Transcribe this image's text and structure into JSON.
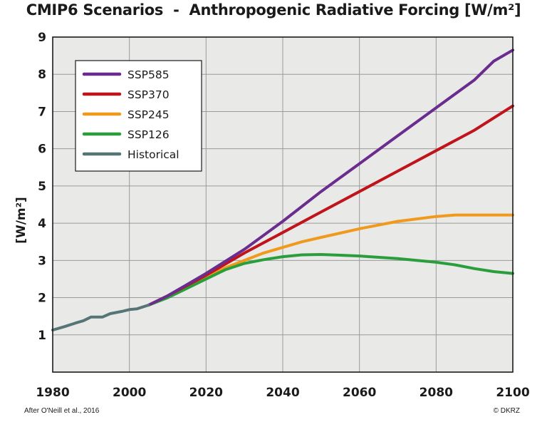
{
  "chart_data": {
    "type": "line",
    "title": "CMIP6 Scenarios  -  Anthropogenic Radiative Forcing [W/m²]",
    "ylabel": "[W/m²]",
    "xlabel": "",
    "xlim": [
      1980,
      2100
    ],
    "ylim": [
      0,
      9
    ],
    "xticks": [
      "1980",
      "2000",
      "2020",
      "2040",
      "2060",
      "2080",
      "2100"
    ],
    "yticks": [
      "1",
      "2",
      "3",
      "4",
      "5",
      "6",
      "7",
      "8",
      "9"
    ],
    "grid": true,
    "legend_position": "top-left",
    "series": [
      {
        "name": "SSP585",
        "color": "#6a2c8e",
        "x": [
          2005,
          2010,
          2020,
          2030,
          2040,
          2050,
          2060,
          2070,
          2080,
          2090,
          2095,
          2100
        ],
        "y": [
          1.8,
          2.05,
          2.65,
          3.3,
          4.05,
          4.85,
          5.6,
          6.35,
          7.1,
          7.85,
          8.35,
          8.65
        ]
      },
      {
        "name": "SSP370",
        "color": "#c0141c",
        "x": [
          2005,
          2010,
          2020,
          2030,
          2040,
          2050,
          2060,
          2070,
          2080,
          2090,
          2100
        ],
        "y": [
          1.8,
          2.05,
          2.6,
          3.2,
          3.75,
          4.3,
          4.85,
          5.4,
          5.95,
          6.5,
          7.15
        ]
      },
      {
        "name": "SSP245",
        "color": "#ef9a1c",
        "x": [
          2005,
          2010,
          2020,
          2025,
          2030,
          2035,
          2040,
          2045,
          2050,
          2060,
          2070,
          2080,
          2085,
          2100
        ],
        "y": [
          1.8,
          2.05,
          2.55,
          2.8,
          3.0,
          3.2,
          3.35,
          3.5,
          3.62,
          3.85,
          4.05,
          4.18,
          4.22,
          4.22
        ]
      },
      {
        "name": "SSP126",
        "color": "#2a9e3c",
        "x": [
          2005,
          2010,
          2020,
          2025,
          2030,
          2035,
          2040,
          2045,
          2050,
          2055,
          2060,
          2070,
          2080,
          2085,
          2090,
          2095,
          2100
        ],
        "y": [
          1.8,
          2.0,
          2.5,
          2.75,
          2.92,
          3.02,
          3.1,
          3.15,
          3.16,
          3.14,
          3.12,
          3.05,
          2.95,
          2.88,
          2.78,
          2.7,
          2.65
        ]
      },
      {
        "name": "Historical",
        "color": "#567575",
        "x": [
          1980,
          1983,
          1986,
          1988,
          1990,
          1992,
          1993,
          1995,
          1998,
          2000,
          2002,
          2005
        ],
        "y": [
          1.13,
          1.22,
          1.32,
          1.38,
          1.48,
          1.48,
          1.48,
          1.57,
          1.63,
          1.68,
          1.7,
          1.8
        ]
      }
    ],
    "source_note": "After O'Neill et al., 2016",
    "credit": "© DKRZ"
  }
}
